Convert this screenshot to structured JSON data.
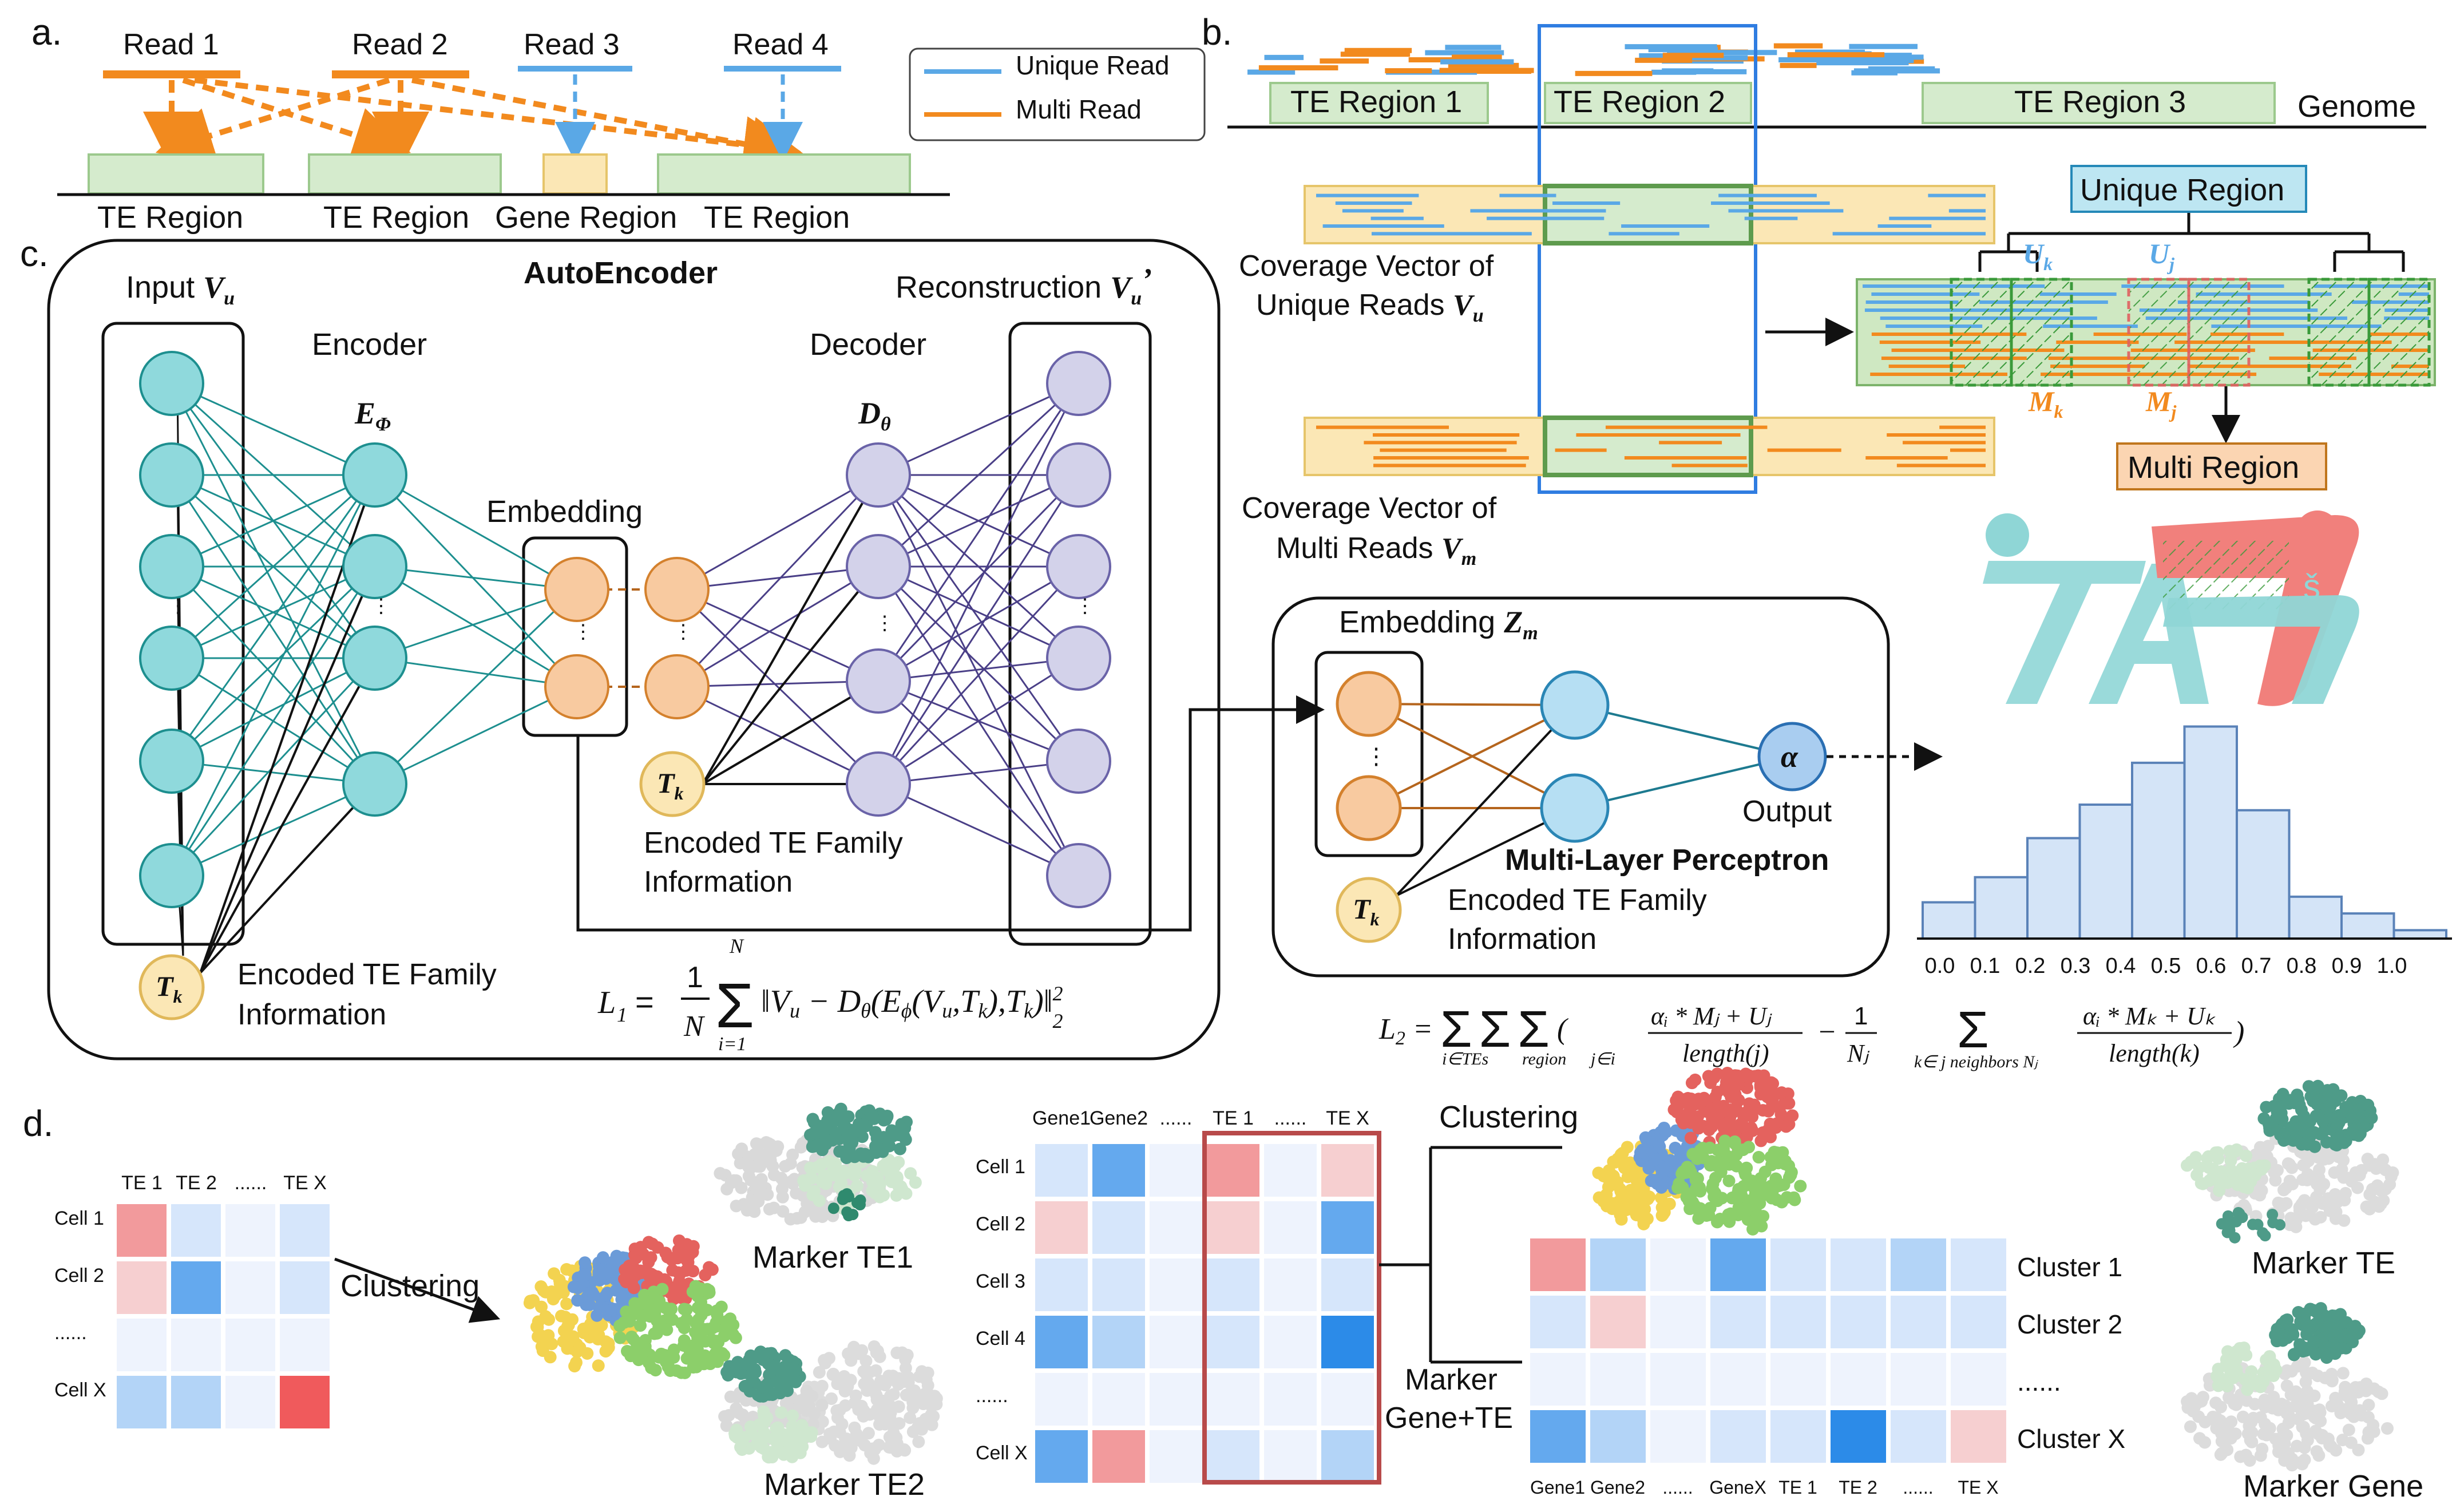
{
  "panel_a": {
    "label": "a.",
    "reads": [
      "Read 1",
      "Read 2",
      "Read 3",
      "Read 4"
    ],
    "legend": {
      "unique": "Unique Read",
      "multi": "Multi Read"
    },
    "regions": [
      "TE Region",
      "TE Region",
      "Gene Region",
      "TE Region"
    ]
  },
  "panel_b": {
    "label": "b.",
    "regions": [
      "TE Region 1",
      "TE Region 2",
      "TE Region 3"
    ],
    "genome": "Genome",
    "coverage_unique": [
      "Coverage Vector of",
      "Unique Reads"
    ],
    "coverage_unique_sym": "V",
    "coverage_unique_sub": "u",
    "coverage_multi": [
      "Coverage Vector of",
      "Multi Reads"
    ],
    "coverage_multi_sym": "V",
    "coverage_multi_sub": "m",
    "unique_region": "Unique Region",
    "multi_region": "Multi Region",
    "uk": "U",
    "uk_sub": "k",
    "uj": "U",
    "uj_sub": "j",
    "mk": "M",
    "mk_sub": "k",
    "mj": "M",
    "mj_sub": "j"
  },
  "panel_c": {
    "label": "c.",
    "title": "AutoEncoder",
    "input": "Input",
    "input_sym": "V",
    "input_sub": "u",
    "encoder": "Encoder",
    "encoder_sym": "E",
    "encoder_sub": "Φ",
    "decoder": "Decoder",
    "decoder_sym": "D",
    "decoder_sub": "θ",
    "embedding": "Embedding",
    "reconstruction": "Reconstruction",
    "recon_sym": "V",
    "recon_sub": "u",
    "recon_prime": "’",
    "tk": "T",
    "tk_sub": "k",
    "encoded_te": [
      "Encoded TE Family",
      "Information"
    ],
    "loss": "L₁ = (1/N) Σ ‖Vᵤ − Dθ(Eϕ(Vᵤ, Tₖ), Tₖ)‖²",
    "mlp_embedding": "Embedding",
    "mlp_emb_sym": "Z",
    "mlp_emb_sub": "m",
    "mlp": "Multi-Layer Perceptron",
    "alpha": "α",
    "output": "Output",
    "loss2": "L₂ = Σ Σ ( (αᵢ * Mⱼ + Uⱼ) / length(j) − (1/Nⱼ) Σ (αᵢ * Mₖ + Uₖ) / length(k) )"
  },
  "panel_d": {
    "label": "d.",
    "small_cols": [
      "TE 1",
      "TE 2",
      "......",
      "TE X"
    ],
    "small_rows": [
      "Cell 1",
      "Cell 2",
      "......",
      "Cell X"
    ],
    "clustering": "Clustering",
    "marker_te1": "Marker TE1",
    "marker_te2": "Marker TE2",
    "big_cols": [
      "Gene1",
      "Gene2",
      "......",
      "TE 1",
      "......",
      "TE X"
    ],
    "big_rows": [
      "Cell 1",
      "Cell 2",
      "Cell 3",
      "Cell 4",
      "......",
      "Cell X"
    ],
    "clustering2": "Clustering",
    "marker_gene_te": [
      "Marker",
      "Gene+TE"
    ],
    "cluster_rows": [
      "Cluster 1",
      "Cluster 2",
      "......",
      "Cluster X"
    ],
    "cluster_cols": [
      "Gene1",
      "Gene2",
      "......",
      "GeneX",
      "TE 1",
      "TE 2",
      "......",
      "TE X"
    ],
    "marker_te": "Marker TE",
    "marker_gene": "Marker Gene"
  },
  "histogram": {
    "ticks": [
      "0.0",
      "0.1",
      "0.2",
      "0.3",
      "0.4",
      "0.5",
      "0.6",
      "0.7",
      "0.8",
      "0.9",
      "1.0"
    ],
    "values": [
      1.3,
      2.2,
      3.6,
      4.8,
      6.3,
      7.6,
      4.6,
      1.5,
      0.9,
      0.3
    ]
  },
  "colors": {
    "unique": "#5aa8e6",
    "multi": "#f28a1e",
    "te_region": "#d5ebcd",
    "gene_region": "#fbe7b5",
    "teal_node": "#8fd9dc",
    "orange_node": "#f8caa0",
    "purple_node": "#d3d2ea",
    "blue_node": "#b6dff3"
  }
}
